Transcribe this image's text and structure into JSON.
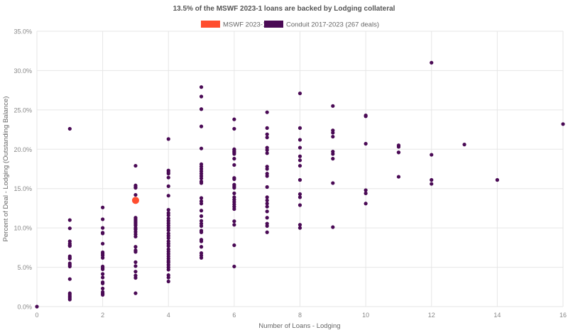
{
  "chart_data": {
    "type": "scatter",
    "title": "13.5% of the MSWF 2023-1 loans are backed by Lodging collateral",
    "xlabel": "Number of Loans - Lodging",
    "ylabel": "Percent of Deal - Lodging (Outstanding Balance)",
    "xlim": [
      0,
      16
    ],
    "ylim": [
      0,
      35
    ],
    "x_ticks": [
      "0",
      "2",
      "4",
      "6",
      "8",
      "10",
      "12",
      "14",
      "16"
    ],
    "y_ticks": [
      "0.0%",
      "5.0%",
      "10.0%",
      "15.0%",
      "20.0%",
      "25.0%",
      "30.0%",
      "35.0%"
    ],
    "grid": true,
    "legend_position": "top",
    "series": [
      {
        "name": "MSWF 2023-1",
        "color": "#ff4d2e",
        "points": [
          [
            3,
            13.5
          ]
        ]
      },
      {
        "name": "Conduit 2017-2023 (267 deals)",
        "color": "#4a0a55",
        "points": [
          [
            0,
            0.0
          ],
          [
            1,
            22.6
          ],
          [
            1,
            11.0
          ],
          [
            1,
            9.95
          ],
          [
            1,
            8.3
          ],
          [
            1,
            8.0
          ],
          [
            1,
            7.8
          ],
          [
            1,
            7.7
          ],
          [
            1,
            6.4
          ],
          [
            1,
            6.2
          ],
          [
            1,
            6.1
          ],
          [
            1,
            5.5
          ],
          [
            1,
            5.3
          ],
          [
            1,
            5.1
          ],
          [
            1,
            3.5
          ],
          [
            1,
            1.7
          ],
          [
            1,
            1.5
          ],
          [
            1,
            1.3
          ],
          [
            1,
            1.1
          ],
          [
            1,
            0.9
          ],
          [
            2,
            12.6
          ],
          [
            2,
            11.1
          ],
          [
            2,
            10.0
          ],
          [
            2,
            9.4
          ],
          [
            2,
            9.3
          ],
          [
            2,
            8.0
          ],
          [
            2,
            6.9
          ],
          [
            2,
            6.7
          ],
          [
            2,
            6.5
          ],
          [
            2,
            6.2
          ],
          [
            2,
            5.1
          ],
          [
            2,
            4.9
          ],
          [
            2,
            4.75
          ],
          [
            2,
            4.15
          ],
          [
            2,
            3.7
          ],
          [
            2,
            3.1
          ],
          [
            2,
            2.95
          ],
          [
            2,
            2.3
          ],
          [
            2,
            1.85
          ],
          [
            2,
            1.65
          ],
          [
            2,
            1.5
          ],
          [
            3,
            17.9
          ],
          [
            3,
            15.4
          ],
          [
            3,
            15.2
          ],
          [
            3,
            15.1
          ],
          [
            3,
            14.2
          ],
          [
            3,
            11.3
          ],
          [
            3,
            11.1
          ],
          [
            3,
            10.9
          ],
          [
            3,
            10.7
          ],
          [
            3,
            10.5
          ],
          [
            3,
            10.3
          ],
          [
            3,
            10.0
          ],
          [
            3,
            9.8
          ],
          [
            3,
            9.5
          ],
          [
            3,
            9.2
          ],
          [
            3,
            8.9
          ],
          [
            3,
            7.6
          ],
          [
            3,
            7.15
          ],
          [
            3,
            6.95
          ],
          [
            3,
            5.65
          ],
          [
            3,
            5.15
          ],
          [
            3,
            4.45
          ],
          [
            3,
            3.95
          ],
          [
            3,
            3.65
          ],
          [
            3,
            1.7
          ],
          [
            4,
            21.3
          ],
          [
            4,
            17.3
          ],
          [
            4,
            17.1
          ],
          [
            4,
            16.9
          ],
          [
            4,
            16.4
          ],
          [
            4,
            15.3
          ],
          [
            4,
            14.1
          ],
          [
            4,
            12.3
          ],
          [
            4,
            11.9
          ],
          [
            4,
            11.6
          ],
          [
            4,
            11.2
          ],
          [
            4,
            10.9
          ],
          [
            4,
            10.6
          ],
          [
            4,
            10.3
          ],
          [
            4,
            10.0
          ],
          [
            4,
            9.7
          ],
          [
            4,
            9.3
          ],
          [
            4,
            9.0
          ],
          [
            4,
            8.7
          ],
          [
            4,
            8.3
          ],
          [
            4,
            8.0
          ],
          [
            4,
            7.7
          ],
          [
            4,
            7.3
          ],
          [
            4,
            7.0
          ],
          [
            4,
            6.7
          ],
          [
            4,
            6.4
          ],
          [
            4,
            6.1
          ],
          [
            4,
            5.8
          ],
          [
            4,
            5.6
          ],
          [
            4,
            5.3
          ],
          [
            4,
            5.0
          ],
          [
            4,
            4.7
          ],
          [
            4,
            4.0
          ],
          [
            4,
            3.7
          ],
          [
            4,
            3.2
          ],
          [
            5,
            27.9
          ],
          [
            5,
            26.7
          ],
          [
            5,
            25.1
          ],
          [
            5,
            22.9
          ],
          [
            5,
            20.1
          ],
          [
            5,
            18.1
          ],
          [
            5,
            17.8
          ],
          [
            5,
            17.5
          ],
          [
            5,
            17.2
          ],
          [
            5,
            16.9
          ],
          [
            5,
            16.6
          ],
          [
            5,
            16.3
          ],
          [
            5,
            15.9
          ],
          [
            5,
            15.7
          ],
          [
            5,
            13.8
          ],
          [
            5,
            13.4
          ],
          [
            5,
            13.1
          ],
          [
            5,
            12.2
          ],
          [
            5,
            11.5
          ],
          [
            5,
            10.9
          ],
          [
            5,
            10.55
          ],
          [
            5,
            10.25
          ],
          [
            5,
            9.65
          ],
          [
            5,
            9.45
          ],
          [
            5,
            8.5
          ],
          [
            5,
            8.3
          ],
          [
            5,
            7.6
          ],
          [
            5,
            6.8
          ],
          [
            5,
            6.5
          ],
          [
            5,
            6.2
          ],
          [
            6,
            23.8
          ],
          [
            6,
            22.6
          ],
          [
            6,
            20.0
          ],
          [
            6,
            19.9
          ],
          [
            6,
            19.7
          ],
          [
            6,
            19.6
          ],
          [
            6,
            19.4
          ],
          [
            6,
            18.8
          ],
          [
            6,
            18.0
          ],
          [
            6,
            16.35
          ],
          [
            6,
            16.2
          ],
          [
            6,
            15.5
          ],
          [
            6,
            15.3
          ],
          [
            6,
            15.1
          ],
          [
            6,
            14.4
          ],
          [
            6,
            13.9
          ],
          [
            6,
            13.6
          ],
          [
            6,
            13.3
          ],
          [
            6,
            13.0
          ],
          [
            6,
            12.7
          ],
          [
            6,
            12.4
          ],
          [
            6,
            10.85
          ],
          [
            6,
            10.4
          ],
          [
            6,
            7.8
          ],
          [
            6,
            5.1
          ],
          [
            7,
            24.7
          ],
          [
            7,
            22.7
          ],
          [
            7,
            21.9
          ],
          [
            7,
            21.5
          ],
          [
            7,
            20.2
          ],
          [
            7,
            19.9
          ],
          [
            7,
            19.5
          ],
          [
            7,
            17.8
          ],
          [
            7,
            17.5
          ],
          [
            7,
            16.9
          ],
          [
            7,
            16.6
          ],
          [
            7,
            15.2
          ],
          [
            7,
            13.9
          ],
          [
            7,
            13.5
          ],
          [
            7,
            13.1
          ],
          [
            7,
            12.7
          ],
          [
            7,
            12.1
          ],
          [
            7,
            11.3
          ],
          [
            7,
            10.55
          ],
          [
            7,
            10.25
          ],
          [
            7,
            9.45
          ],
          [
            8,
            27.1
          ],
          [
            8,
            22.7
          ],
          [
            8,
            21.2
          ],
          [
            8,
            20.2
          ],
          [
            8,
            19.1
          ],
          [
            8,
            18.6
          ],
          [
            8,
            17.9
          ],
          [
            8,
            16.1
          ],
          [
            8,
            14.3
          ],
          [
            8,
            13.9
          ],
          [
            8,
            12.9
          ],
          [
            8,
            10.4
          ],
          [
            8,
            10.0
          ],
          [
            9,
            25.5
          ],
          [
            9,
            22.4
          ],
          [
            9,
            22.1
          ],
          [
            9,
            21.6
          ],
          [
            9,
            19.7
          ],
          [
            9,
            19.4
          ],
          [
            9,
            18.8
          ],
          [
            9,
            15.7
          ],
          [
            9,
            10.1
          ],
          [
            10,
            24.3
          ],
          [
            10,
            24.2
          ],
          [
            10,
            20.7
          ],
          [
            10,
            14.8
          ],
          [
            10,
            14.4
          ],
          [
            10,
            13.1
          ],
          [
            11,
            20.5
          ],
          [
            11,
            20.3
          ],
          [
            11,
            19.6
          ],
          [
            11,
            19.6
          ],
          [
            11,
            16.5
          ],
          [
            12,
            31.0
          ],
          [
            12,
            19.3
          ],
          [
            12,
            16.1
          ],
          [
            12,
            15.6
          ],
          [
            13,
            20.6
          ],
          [
            14,
            16.1
          ],
          [
            16,
            23.2
          ]
        ]
      }
    ]
  }
}
